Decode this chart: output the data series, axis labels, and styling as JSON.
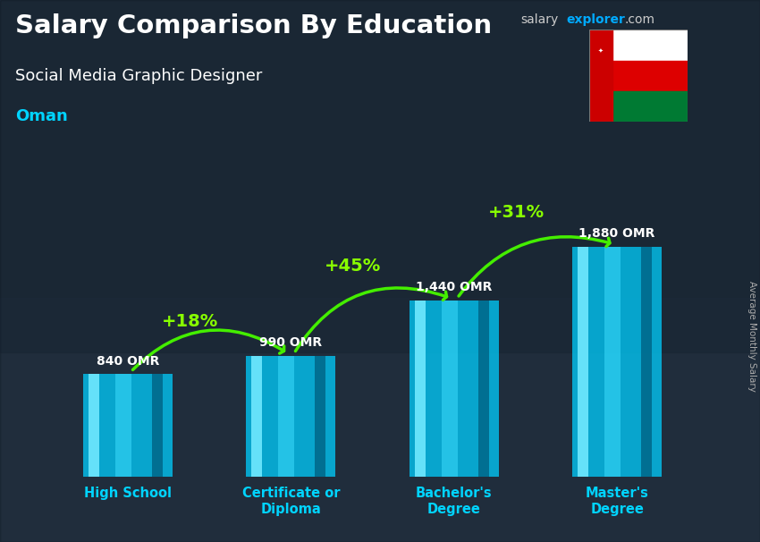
{
  "title_line1": "Salary Comparison By Education",
  "subtitle": "Social Media Graphic Designer",
  "country": "Oman",
  "ylabel": "Average Monthly Salary",
  "categories": [
    "High School",
    "Certificate or\nDiploma",
    "Bachelor's\nDegree",
    "Master's\nDegree"
  ],
  "values": [
    840,
    990,
    1440,
    1880
  ],
  "value_labels": [
    "840 OMR",
    "990 OMR",
    "1,440 OMR",
    "1,880 OMR"
  ],
  "pct_labels": [
    "+18%",
    "+45%",
    "+31%"
  ],
  "bar_color_main": "#00cfff",
  "bar_color_light": "#70e8ff",
  "bar_color_dark": "#0099bb",
  "bar_color_shadow": "#006688",
  "bg_color": "#3a4a5a",
  "overlay_color": "#1a2535",
  "title_color": "#ffffff",
  "subtitle_color": "#ffffff",
  "country_color": "#00d4ff",
  "value_color": "#ffffff",
  "pct_color": "#88ff00",
  "arrow_color": "#44ee00",
  "watermark_salary_color": "#cccccc",
  "watermark_explorer_color": "#00aaff",
  "watermark_dot_color": "#cccccc",
  "xtick_color": "#00d4ff",
  "ylim": [
    0,
    2300
  ],
  "bar_width": 0.55,
  "bar_alpha": 0.75
}
